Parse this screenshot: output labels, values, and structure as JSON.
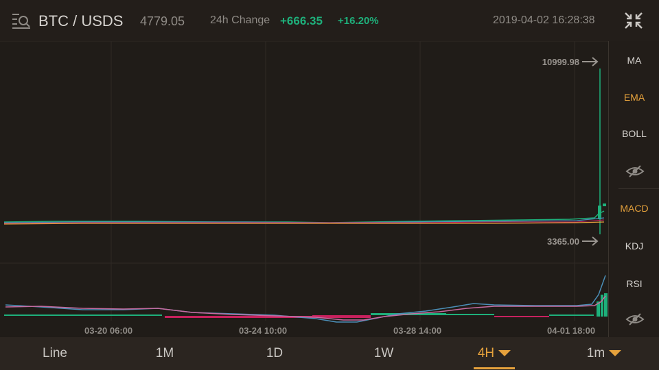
{
  "header": {
    "pair": "BTC / USDS",
    "price": "4779.05",
    "change_label": "24h Change",
    "change_value": "+666.35",
    "change_percent": "+16.20%",
    "datetime": "2019-04-02 16:28:38",
    "menu_icon": "list-search-icon",
    "fullscreen_icon": "collapse-fullscreen-icon"
  },
  "chart": {
    "high_label": "10999.98",
    "low_label": "3365.00",
    "x_ticks": [
      "03-20 06:00",
      "03-24 10:00",
      "03-28 14:00",
      "04-01 18:00"
    ]
  },
  "side_panel": {
    "main_indicators": [
      {
        "label": "MA",
        "active": false
      },
      {
        "label": "EMA",
        "active": true
      },
      {
        "label": "BOLL",
        "active": false
      }
    ],
    "sub_indicators": [
      {
        "label": "MACD",
        "active": true
      },
      {
        "label": "KDJ",
        "active": false
      },
      {
        "label": "RSI",
        "active": false
      }
    ],
    "hide_icon": "eye-hidden-icon"
  },
  "timeframes": [
    {
      "label": "Line",
      "active": false,
      "dropdown": false
    },
    {
      "label": "1M",
      "active": false,
      "dropdown": false
    },
    {
      "label": "1D",
      "active": false,
      "dropdown": false
    },
    {
      "label": "1W",
      "active": false,
      "dropdown": false
    },
    {
      "label": "4H",
      "active": true,
      "dropdown": true
    },
    {
      "label": "1m",
      "active": false,
      "dropdown": true
    }
  ],
  "colors": {
    "up": "#1eb07b",
    "down": "#c8215e",
    "accent": "#e6a23c"
  }
}
